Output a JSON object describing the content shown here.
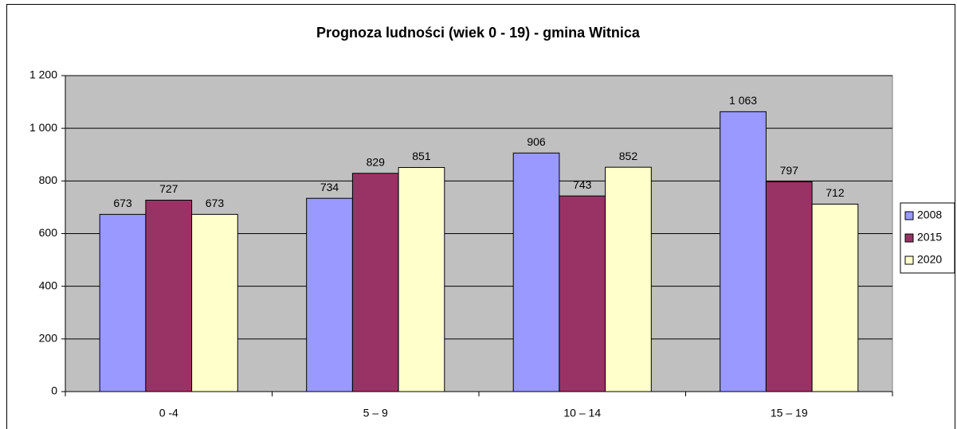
{
  "chart_data": {
    "type": "bar",
    "title": "Prognoza ludności (wiek 0 - 19) - gmina Witnica",
    "categories": [
      "0 -4",
      "5 – 9",
      "10 – 14",
      "15 – 19"
    ],
    "series": [
      {
        "name": "2008",
        "color": "#9999ff",
        "values": [
          673,
          734,
          906,
          1063
        ],
        "value_labels": [
          "673",
          "734",
          "906",
          "1 063"
        ]
      },
      {
        "name": "2015",
        "color": "#993366",
        "values": [
          727,
          829,
          743,
          797
        ],
        "value_labels": [
          "727",
          "829",
          "743",
          "797"
        ]
      },
      {
        "name": "2020",
        "color": "#ffffcc",
        "values": [
          673,
          851,
          852,
          712
        ],
        "value_labels": [
          "673",
          "851",
          "852",
          "712"
        ]
      }
    ],
    "ylim": [
      0,
      1200
    ],
    "yticks": [
      0,
      200,
      400,
      600,
      800,
      {
        "value": 1000,
        "label": "1 000"
      },
      {
        "value": 1200,
        "label": "1 200"
      }
    ],
    "grid": true,
    "legend": "right"
  }
}
